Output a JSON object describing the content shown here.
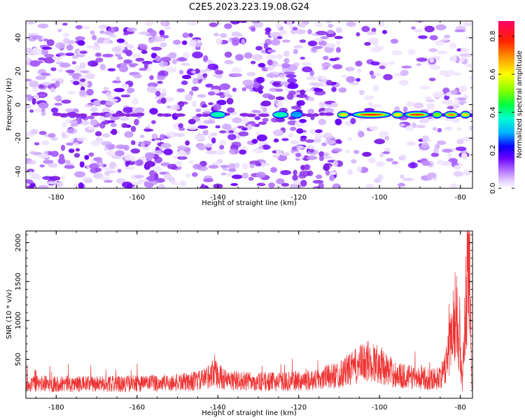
{
  "title": "C2E5.2023.223.19.08.G24",
  "colorbar": {
    "label": "Normalized spectral amplitude",
    "range": [
      0,
      0.88
    ],
    "ticks": [
      "0.0",
      "0.2",
      "0.4",
      "0.6",
      "0.8"
    ],
    "tick_values": [
      0.0,
      0.2,
      0.4,
      0.6,
      0.8
    ]
  },
  "chart_data": [
    {
      "type": "heatmap",
      "xlabel": "Height of straight line (km)",
      "ylabel": "Frequency (Hz)",
      "xlim": [
        -187.5,
        -77
      ],
      "ylim": [
        -50,
        50
      ],
      "x_ticks": [
        -180,
        -160,
        -140,
        -120,
        -100,
        -80
      ],
      "x_tick_labels": [
        "-180",
        "-160",
        "-140",
        "-120",
        "-100",
        "-80"
      ],
      "y_ticks": [
        -40,
        -20,
        0,
        20,
        40
      ],
      "y_tick_labels": [
        "-40",
        "-20",
        "0",
        "20",
        "40"
      ],
      "colormap": [
        "#ffffff",
        "#e8d4ff",
        "#c48cff",
        "#8a2be2",
        "#5a00ff",
        "#0a00ff",
        "#00aaff",
        "#00ff80",
        "#60ff00",
        "#ffff00",
        "#ff9900",
        "#ff0000",
        "#ff0066"
      ],
      "signal_line": {
        "freq": -6,
        "x_start": -143,
        "x_end": -77
      },
      "noise_fade_x": -110,
      "hot_segments": [
        {
          "x0": -142,
          "x1": -138,
          "amp": 0.3
        },
        {
          "x0": -126.5,
          "x1": -122.5,
          "amp": 0.3
        },
        {
          "x0": -122,
          "x1": -119,
          "amp": 0.25
        },
        {
          "x0": -110.5,
          "x1": -107.5,
          "amp": 0.6
        },
        {
          "x0": -107,
          "x1": -97,
          "amp": 0.75
        },
        {
          "x0": -97,
          "x1": -94,
          "amp": 0.55
        },
        {
          "x0": -94,
          "x1": -87.5,
          "amp": 0.72
        },
        {
          "x0": -87,
          "x1": -84.5,
          "amp": 0.5
        },
        {
          "x0": -84,
          "x1": -80.5,
          "amp": 0.65
        },
        {
          "x0": -80,
          "x1": -77.5,
          "amp": 0.55
        }
      ]
    },
    {
      "type": "line",
      "xlabel": "Height of straight line (km)",
      "ylabel": "SNR (10 * v/v)",
      "xlim": [
        -187.5,
        -77
      ],
      "ylim": [
        0,
        2150
      ],
      "x_ticks": [
        -180,
        -160,
        -140,
        -120,
        -100,
        -80
      ],
      "x_tick_labels": [
        "-180",
        "-160",
        "-140",
        "-120",
        "-100",
        "-80"
      ],
      "y_ticks": [
        500,
        1000,
        1500,
        2000
      ],
      "y_tick_labels": [
        "500",
        "1000",
        "1500",
        "2000"
      ],
      "color": "#ee3333",
      "envelope": {
        "x": [
          -187.5,
          -180,
          -170,
          -160,
          -150,
          -144,
          -141,
          -138,
          -130,
          -120,
          -115,
          -110,
          -107,
          -103,
          -100,
          -97,
          -95,
          -90,
          -86,
          -84,
          -83,
          -82,
          -81.5,
          -81,
          -80.5,
          -80,
          -79.5,
          -79,
          -78.5,
          -78,
          -77.6,
          -77.3,
          -77
        ],
        "y": [
          180,
          190,
          180,
          190,
          200,
          230,
          330,
          230,
          210,
          220,
          250,
          310,
          380,
          480,
          440,
          330,
          290,
          260,
          250,
          320,
          620,
          900,
          1050,
          1100,
          900,
          520,
          180,
          800,
          1500,
          1900,
          1600,
          300,
          80
        ]
      }
    }
  ]
}
